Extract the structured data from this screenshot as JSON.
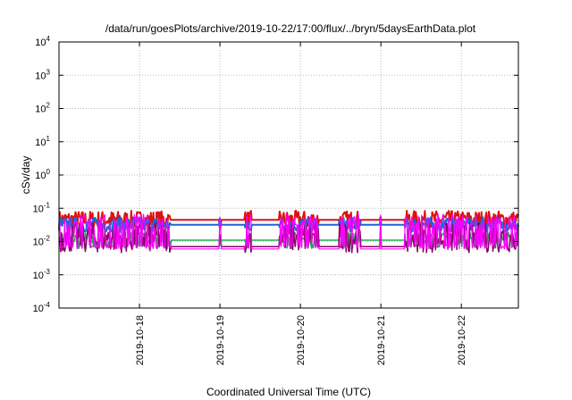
{
  "chart_data": {
    "type": "line",
    "title": "/data/run/goesPlots/archive/2019-10-22/17:00/flux/../bryn/5daysEarthData.plot",
    "xlabel": "Coordinated Universal Time (UTC)",
    "ylabel": "cSv/day",
    "y_scale": "log",
    "ylim": [
      0.0001,
      10000
    ],
    "xlim": [
      "2019-10-17T00:00",
      "2019-10-22T17:00"
    ],
    "y_ticks": [
      {
        "value": 0.0001,
        "base": "10",
        "exp": "-4"
      },
      {
        "value": 0.001,
        "base": "10",
        "exp": "-3"
      },
      {
        "value": 0.01,
        "base": "10",
        "exp": "-2"
      },
      {
        "value": 0.1,
        "base": "10",
        "exp": "-1"
      },
      {
        "value": 1,
        "base": "10",
        "exp": "0"
      },
      {
        "value": 10,
        "base": "10",
        "exp": "1"
      },
      {
        "value": 100,
        "base": "10",
        "exp": "2"
      },
      {
        "value": 1000,
        "base": "10",
        "exp": "3"
      },
      {
        "value": 10000,
        "base": "10",
        "exp": "4"
      }
    ],
    "x_ticks": [
      "2019-10-18",
      "2019-10-19",
      "2019-10-20",
      "2019-10-21",
      "2019-10-22"
    ],
    "grid": true,
    "series_colors": [
      "#dd1111",
      "#1a66dd",
      "#22aa55",
      "#880066",
      "#ff00ff"
    ],
    "series_levels": [
      0.045,
      0.032,
      0.011,
      0.007,
      0.006
    ],
    "gaps": [
      [
        "2019-10-18T09:30",
        "2019-10-18T23:50"
      ],
      [
        "2019-10-19T00:20",
        "2019-10-19T07:20"
      ],
      [
        "2019-10-19T09:20",
        "2019-10-19T17:40"
      ],
      [
        "2019-10-20T05:30",
        "2019-10-20T11:30"
      ],
      [
        "2019-10-20T18:00",
        "2019-10-20T23:40"
      ],
      [
        "2019-10-21T00:00",
        "2019-10-21T07:00"
      ]
    ]
  }
}
